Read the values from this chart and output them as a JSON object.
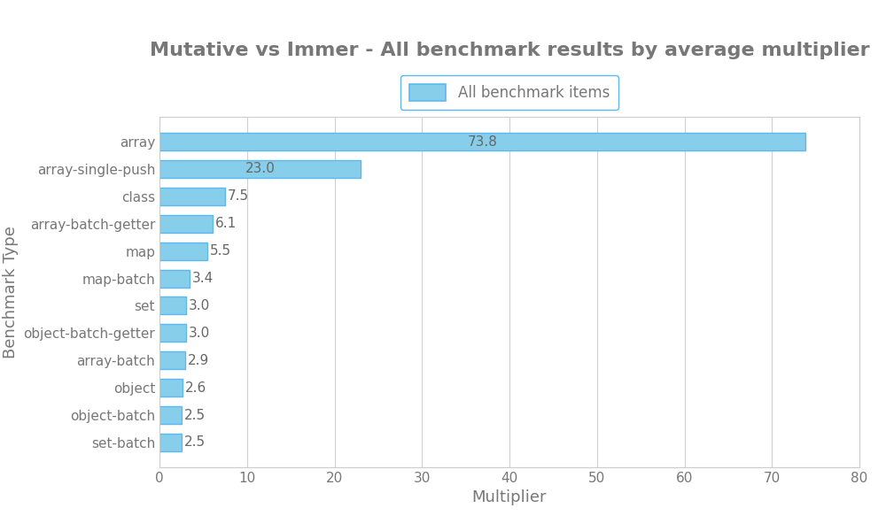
{
  "title": "Mutative vs Immer - All benchmark results by average multiplier",
  "categories": [
    "array",
    "array-single-push",
    "class",
    "array-batch-getter",
    "map",
    "map-batch",
    "set",
    "object-batch-getter",
    "array-batch",
    "object",
    "object-batch",
    "set-batch"
  ],
  "values": [
    73.8,
    23.0,
    7.5,
    6.1,
    5.5,
    3.4,
    3.0,
    3.0,
    2.9,
    2.6,
    2.5,
    2.5
  ],
  "bar_color": "#87CEEB",
  "bar_edge_color": "#5BB8F5",
  "xlabel": "Multiplier",
  "ylabel": "Benchmark Type",
  "xlim": [
    0,
    80
  ],
  "xticks": [
    0,
    10,
    20,
    30,
    40,
    50,
    60,
    70,
    80
  ],
  "legend_label": "All benchmark items",
  "title_fontsize": 16,
  "axis_label_fontsize": 13,
  "tick_fontsize": 11,
  "legend_fontsize": 12,
  "background_color": "#ffffff",
  "grid_color": "#d0d0d0",
  "spine_color": "#cccccc",
  "text_color": "#777777",
  "label_color": "#666666"
}
